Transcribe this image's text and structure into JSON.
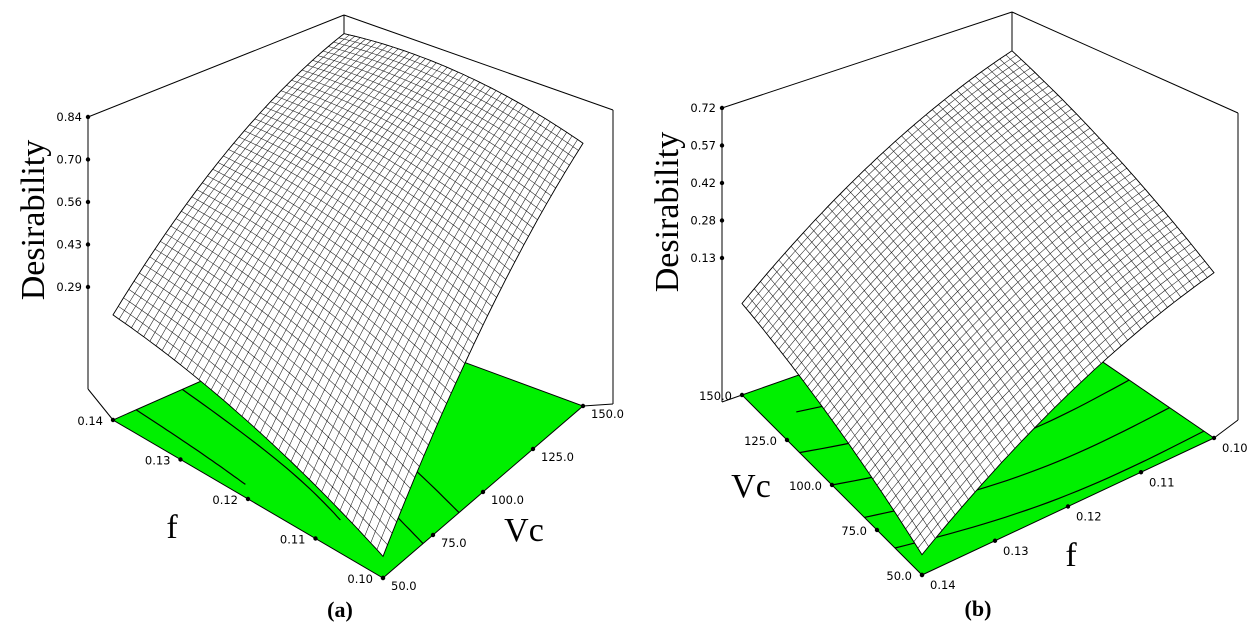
{
  "chart_data": [
    {
      "type": "surface",
      "panel_label": "(a)",
      "zlabel": "Desirability",
      "xlabel": "Vc",
      "ylabel": "f",
      "x_ticks": [
        "50.0",
        "75.0",
        "100.0",
        "125.0",
        "150.0"
      ],
      "y_ticks": [
        "0.10",
        "0.11",
        "0.12",
        "0.13",
        "0.14"
      ],
      "z_ticks": [
        "0.29",
        "0.43",
        "0.56",
        "0.70",
        "0.84"
      ],
      "x_range": [
        50,
        150
      ],
      "y_range": [
        0.1,
        0.14
      ],
      "z_range": [
        0.29,
        0.84
      ],
      "floor_color": "#00f000",
      "surface_corners": {
        "Vc50_f0.10": 0.02,
        "Vc150_f0.10": 0.8,
        "Vc50_f0.14": 0.29,
        "Vc150_f0.14": 0.87
      }
    },
    {
      "type": "surface",
      "panel_label": "(b)",
      "zlabel": "Desirability",
      "xlabel": "f",
      "ylabel": "Vc",
      "x_ticks": [
        "0.14",
        "0.13",
        "0.12",
        "0.11",
        "0.10"
      ],
      "y_ticks": [
        "50.0",
        "75.0",
        "100.0",
        "125.0",
        "150.0"
      ],
      "z_ticks": [
        "0.13",
        "0.28",
        "0.42",
        "0.57",
        "0.72"
      ],
      "x_range": [
        0.14,
        0.1
      ],
      "y_range": [
        50,
        150
      ],
      "z_range": [
        0.13,
        0.72
      ],
      "floor_color": "#00f000",
      "surface_corners": {
        "Vc50_f0.14": 0.0,
        "Vc150_f0.14": 0.57,
        "Vc50_f0.10": 0.28,
        "Vc150_f0.10": 0.9
      }
    }
  ]
}
